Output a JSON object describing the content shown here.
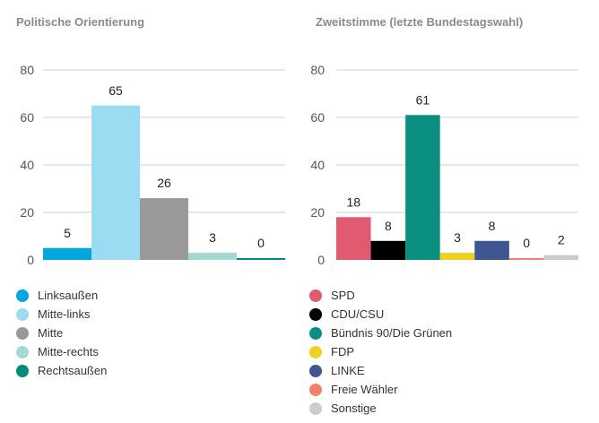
{
  "chart_data": [
    {
      "type": "bar",
      "title": "Politische Orientierung",
      "ylim": [
        0,
        80
      ],
      "yticks": [
        0,
        20,
        40,
        60,
        80
      ],
      "grid": true,
      "legend": "bottom",
      "categories": [
        "Linksaußen",
        "Mitte-links",
        "Mitte",
        "Mitte-rechts",
        "Rechtsaußen"
      ],
      "values": [
        5,
        65,
        26,
        3,
        0
      ],
      "colors": [
        "#00a6de",
        "#9cdcf2",
        "#999999",
        "#a3d9d1",
        "#008a7a"
      ]
    },
    {
      "type": "bar",
      "title": "Zweitstimme (letzte Bundestagswahl)",
      "ylim": [
        0,
        80
      ],
      "yticks": [
        0,
        20,
        40,
        60,
        80
      ],
      "grid": true,
      "legend": "bottom",
      "categories": [
        "SPD",
        "CDU/CSU",
        "Bündnis 90/Die Grünen",
        "FDP",
        "LINKE",
        "Freie Wähler",
        "Sonstige"
      ],
      "values": [
        18,
        8,
        61,
        3,
        8,
        0,
        2
      ],
      "colors": [
        "#e05a70",
        "#000000",
        "#0a8f80",
        "#f0d020",
        "#3f5790",
        "#f08070",
        "#cccccc"
      ]
    }
  ]
}
